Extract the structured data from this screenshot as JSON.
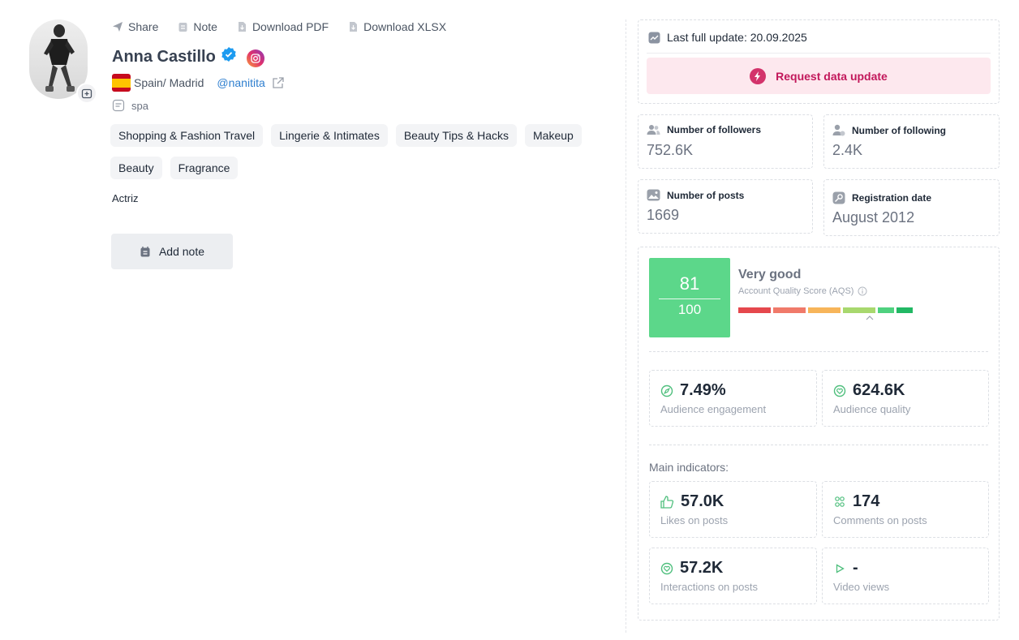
{
  "toolbar": {
    "share": "Share",
    "note": "Note",
    "download_pdf": "Download PDF",
    "download_xlsx": "Download XLSX"
  },
  "profile": {
    "name": "Anna Castillo",
    "location": "Spain/ Madrid",
    "handle": "@nanitita",
    "language": "spa",
    "tags": [
      "Shopping & Fashion Travel",
      "Lingerie & Intimates",
      "Beauty Tips & Hacks",
      "Makeup",
      "Beauty",
      "Fragrance"
    ],
    "bio": "Actriz",
    "add_note_label": "Add note"
  },
  "update": {
    "last_update": "Last full update: 20.09.2025",
    "request_label": "Request data update"
  },
  "stats": {
    "followers": {
      "label": "Number of followers",
      "value": "752.6K"
    },
    "following": {
      "label": "Number of following",
      "value": "2.4K"
    },
    "posts": {
      "label": "Number of posts",
      "value": "1669"
    },
    "registration": {
      "label": "Registration date",
      "value": "August 2012"
    }
  },
  "aqs": {
    "score": "81",
    "max": "100",
    "rating": "Very good",
    "caption": "Account Quality Score (AQS)",
    "bar_colors": [
      "#e5484d",
      "#f07a6a",
      "#f7b55a",
      "#a8d86e",
      "#4fd17f",
      "#22b864"
    ]
  },
  "metrics": {
    "engagement": {
      "value": "7.49%",
      "label": "Audience engagement"
    },
    "audience_quality": {
      "value": "624.6K",
      "label": "Audience quality"
    }
  },
  "main_indicators": {
    "title": "Main indicators:",
    "likes": {
      "value": "57.0K",
      "label": "Likes on posts"
    },
    "comments": {
      "value": "174",
      "label": "Comments on posts"
    },
    "interactions": {
      "value": "57.2K",
      "label": "Interactions on posts"
    },
    "video_views": {
      "value": "-",
      "label": "Video views"
    }
  },
  "colors": {
    "accent_pink": "#c2185b",
    "score_green": "#5cd78a",
    "link_blue": "#2f7fcf",
    "verified_blue": "#1d9bf0"
  }
}
